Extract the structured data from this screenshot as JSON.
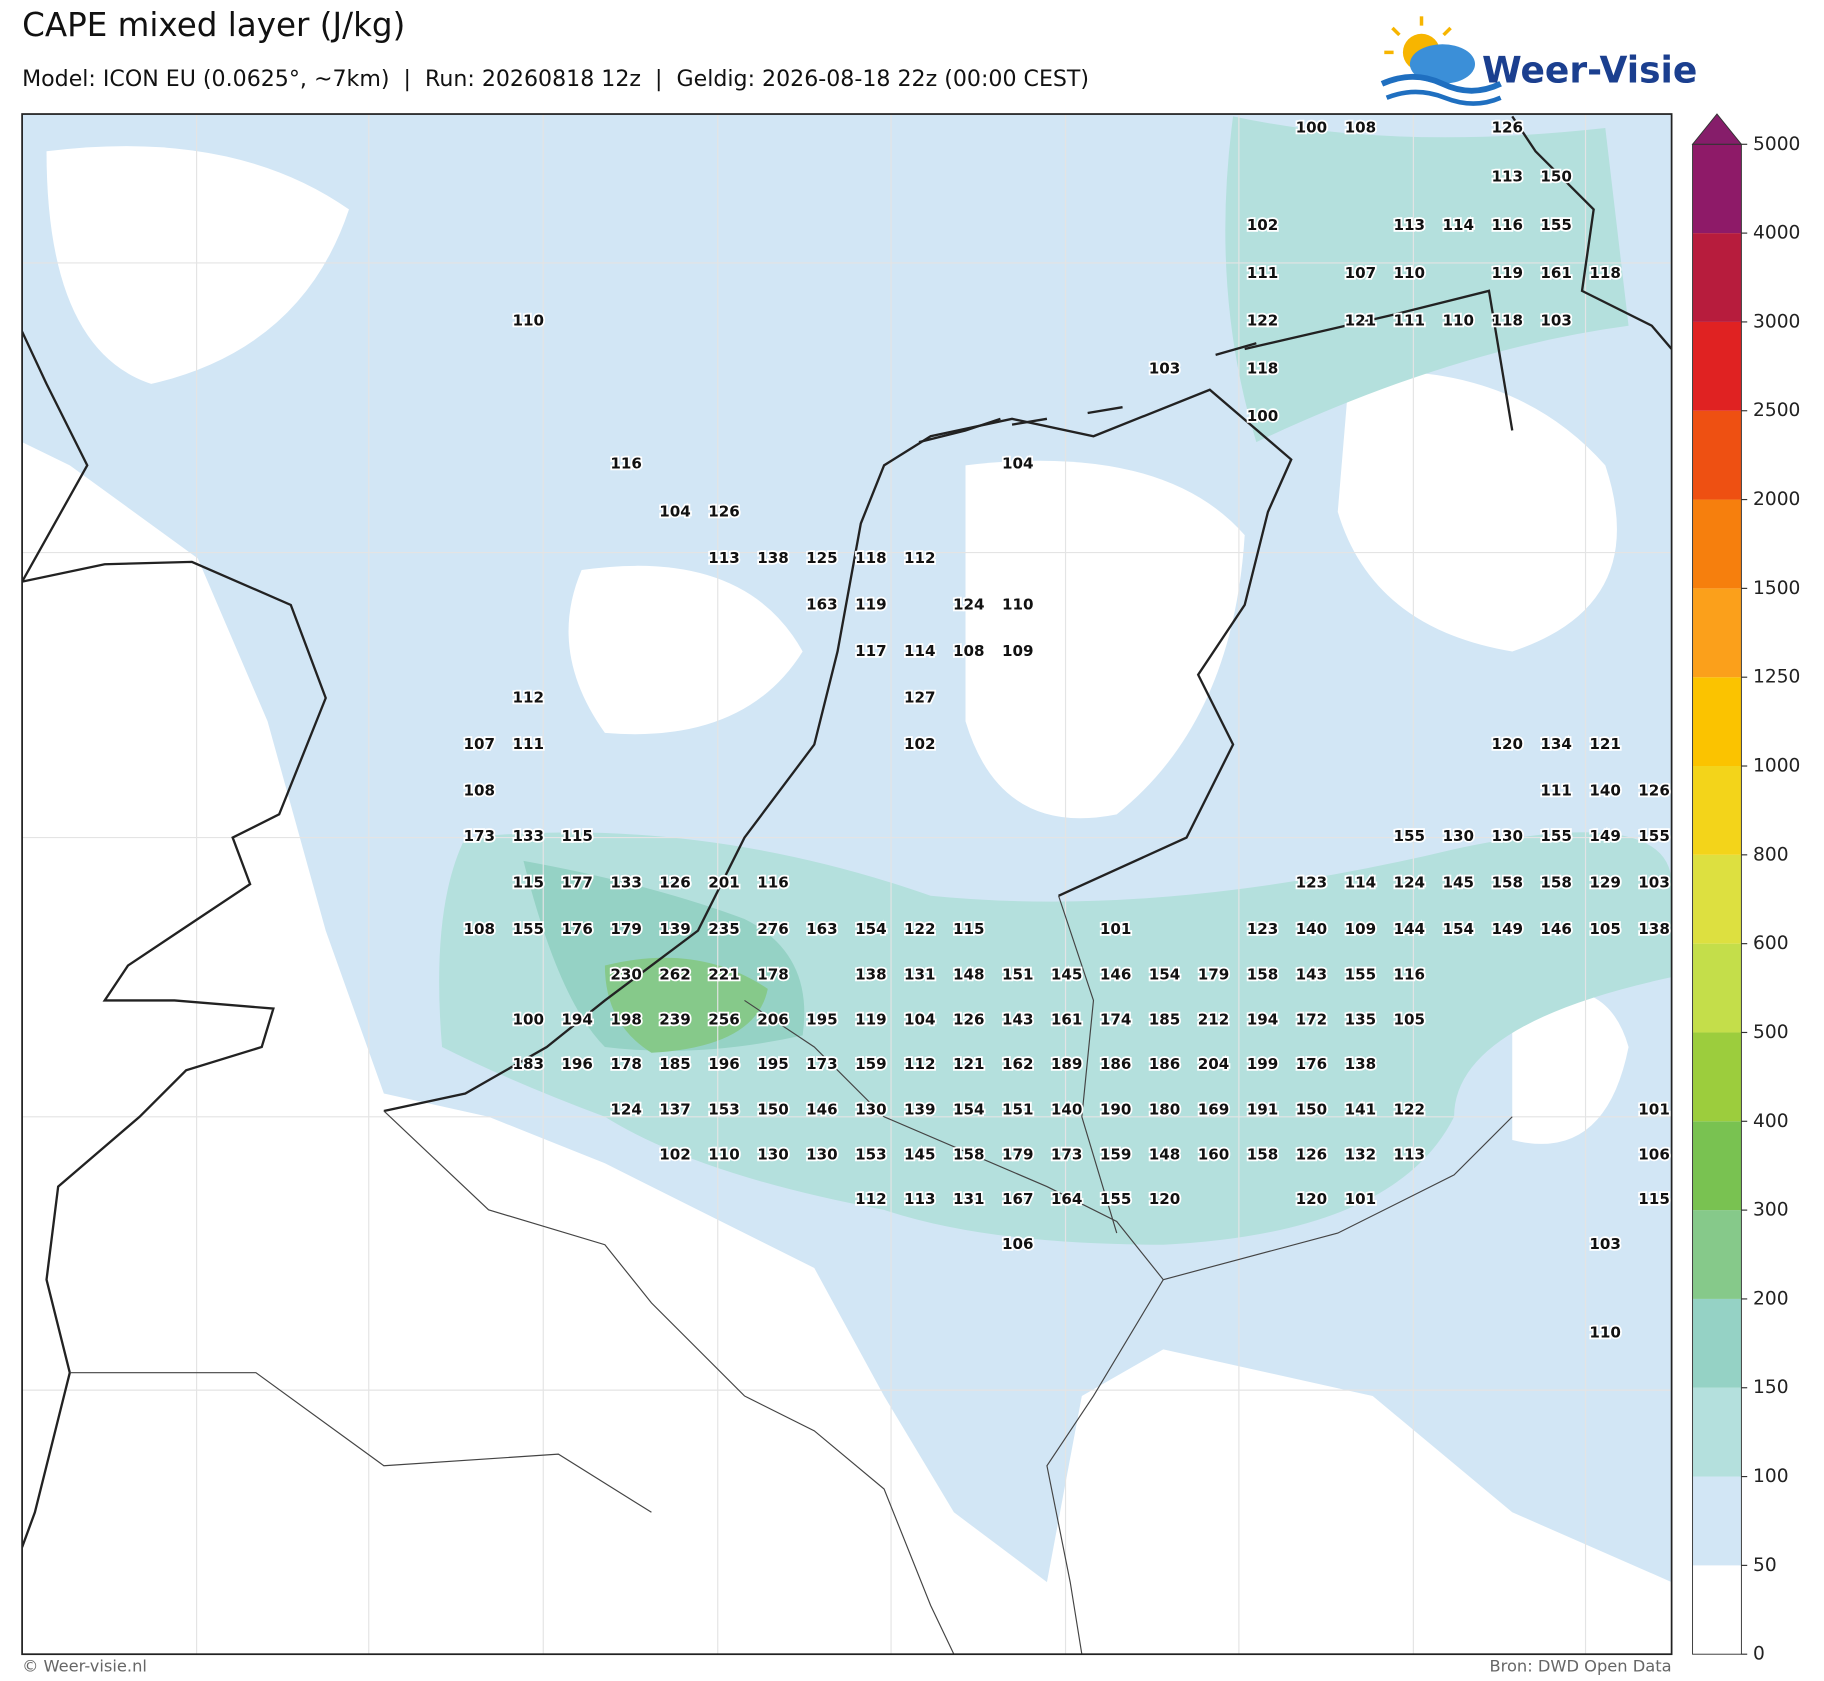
{
  "header": {
    "title": "CAPE mixed layer (J/kg)",
    "subtitle": "Model: ICON EU (0.0625°, ~7km)  |  Run: 20260818 12z  |  Geldig: 2026-08-18 22z (00:00 CEST)",
    "logo": "Weer-Visie"
  },
  "map": {
    "value_rows": [
      [
        100,
        108,
        126
      ],
      [
        113,
        150
      ],
      [
        102,
        113,
        114,
        116,
        155
      ],
      [
        111,
        107,
        110,
        119,
        161,
        118
      ],
      [
        110,
        122,
        121,
        111,
        110,
        118,
        103
      ],
      [
        103,
        118
      ],
      [
        100
      ],
      [
        116,
        104
      ],
      [
        104,
        126
      ],
      [
        113,
        138,
        125,
        118,
        112
      ],
      [
        163,
        119,
        124,
        110
      ],
      [
        117,
        114,
        108,
        109
      ],
      [
        112,
        127
      ],
      [
        107,
        111,
        102,
        120,
        134,
        121
      ],
      [
        108,
        111,
        140,
        126
      ],
      [
        173,
        133,
        115,
        155,
        130,
        130,
        155,
        149,
        155
      ],
      [
        115,
        177,
        133,
        126,
        201,
        116,
        123,
        114,
        124,
        145,
        158,
        158,
        129,
        103
      ],
      [
        108,
        155,
        176,
        179,
        139,
        235,
        276,
        163,
        154,
        122,
        115,
        101,
        123,
        140,
        109,
        144,
        154,
        149,
        146,
        105,
        138
      ],
      [
        230,
        262,
        221,
        178,
        138,
        131,
        148,
        151,
        145,
        146,
        154,
        179,
        158,
        143,
        155,
        116
      ],
      [
        100,
        194,
        198,
        239,
        256,
        206,
        195,
        119,
        104,
        126,
        143,
        161,
        174,
        185,
        212,
        194,
        172,
        135,
        105
      ],
      [
        183,
        196,
        178,
        185,
        196,
        195,
        173,
        159,
        112,
        121,
        162,
        189,
        186,
        186,
        204,
        199,
        176,
        138
      ],
      [
        124,
        137,
        153,
        150,
        146,
        130,
        139,
        154,
        151,
        140,
        190,
        180,
        169,
        191,
        150,
        141,
        122,
        101
      ],
      [
        102,
        110,
        130,
        130,
        153,
        145,
        158,
        179,
        173,
        159,
        148,
        160,
        158,
        126,
        132,
        113,
        106
      ],
      [
        112,
        113,
        131,
        167,
        164,
        155,
        120,
        120,
        101,
        115
      ],
      [
        106,
        103
      ],
      [
        110
      ]
    ]
  },
  "colorbar": {
    "levels": [
      0,
      50,
      100,
      150,
      200,
      300,
      400,
      500,
      600,
      800,
      1000,
      1250,
      1500,
      2000,
      2500,
      3000,
      4000,
      5000
    ],
    "colors": [
      "#ffffff",
      "#d2e6f5",
      "#b4e0dd",
      "#95d2c5",
      "#86c98a",
      "#79c251",
      "#9ccd3d",
      "#c4de4a",
      "#dde040",
      "#f3d41a",
      "#fbc300",
      "#fba01b",
      "#f67f0d",
      "#ee5012",
      "#e02222",
      "#b71c3d",
      "#8e1a68"
    ],
    "extend_color": "#861d6a"
  },
  "footer": {
    "copyright": "© Weer-visie.nl",
    "source": "Bron: DWD Open Data"
  }
}
